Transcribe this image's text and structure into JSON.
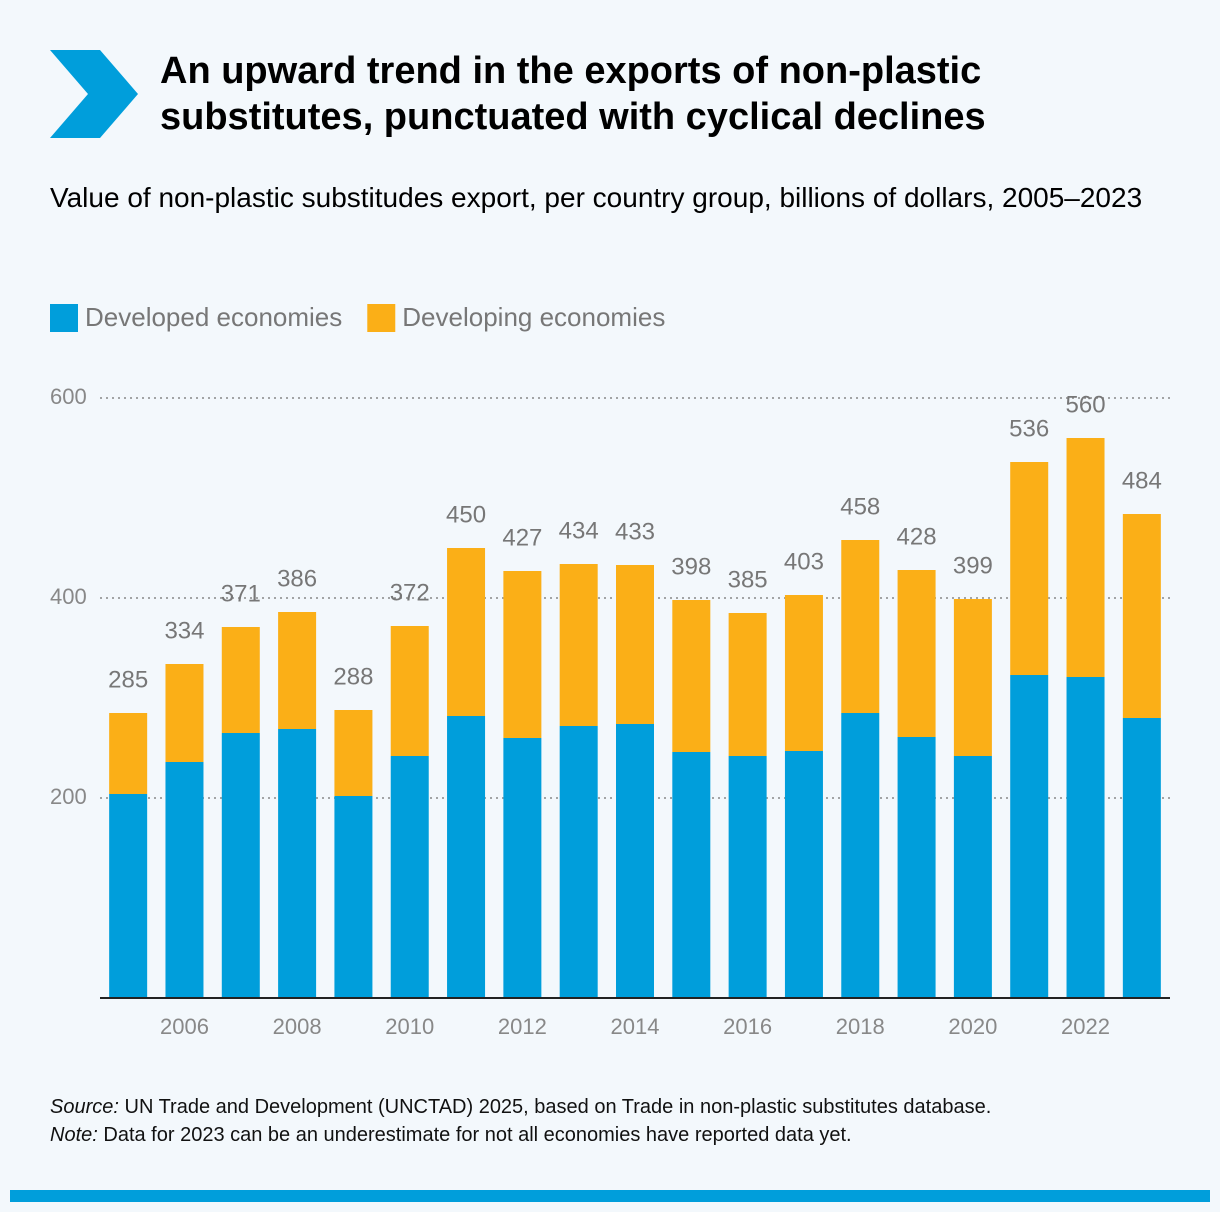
{
  "chart_data": {
    "type": "stacked_bar",
    "title": "An upward trend in the exports of non-plastic substitutes, punctuated with cyclical declines",
    "subtitle": "Value of non-plastic substitudes export, per country group, billions of dollars, 2005–2023",
    "categories": [
      null,
      "2006",
      null,
      "2008",
      null,
      "2010",
      null,
      "2012",
      null,
      "2014",
      null,
      "2016",
      null,
      "2018",
      null,
      "2020",
      null,
      "2022",
      null
    ],
    "series": [
      {
        "name": "Developed economies",
        "color": "#009edb",
        "values": [
          204,
          236,
          265,
          269,
          202,
          242,
          282,
          260,
          272,
          274,
          246,
          242,
          247,
          285,
          261,
          242,
          323,
          321,
          280
        ]
      },
      {
        "name": "Developing economies",
        "color": "#fbaf17",
        "values": [
          81,
          98,
          106,
          117,
          86,
          130,
          168,
          167,
          162,
          159,
          152,
          143,
          156,
          173,
          167,
          157,
          213,
          239,
          204
        ]
      }
    ],
    "totals": [
      285,
      334,
      371,
      386,
      288,
      372,
      450,
      427,
      434,
      433,
      398,
      385,
      403,
      458,
      428,
      399,
      536,
      560,
      484
    ],
    "ylim": [
      0,
      600
    ],
    "yticks": [
      200,
      400,
      600
    ],
    "grid": true,
    "source": {
      "label": "Source:",
      "text": "UN Trade and Development (UNCTAD) 2025, based on Trade in non-plastic substitutes database."
    },
    "note": {
      "label": "Note:",
      "text": "Data for 2023 can be an underestimate for not all economies have reported data yet."
    }
  }
}
